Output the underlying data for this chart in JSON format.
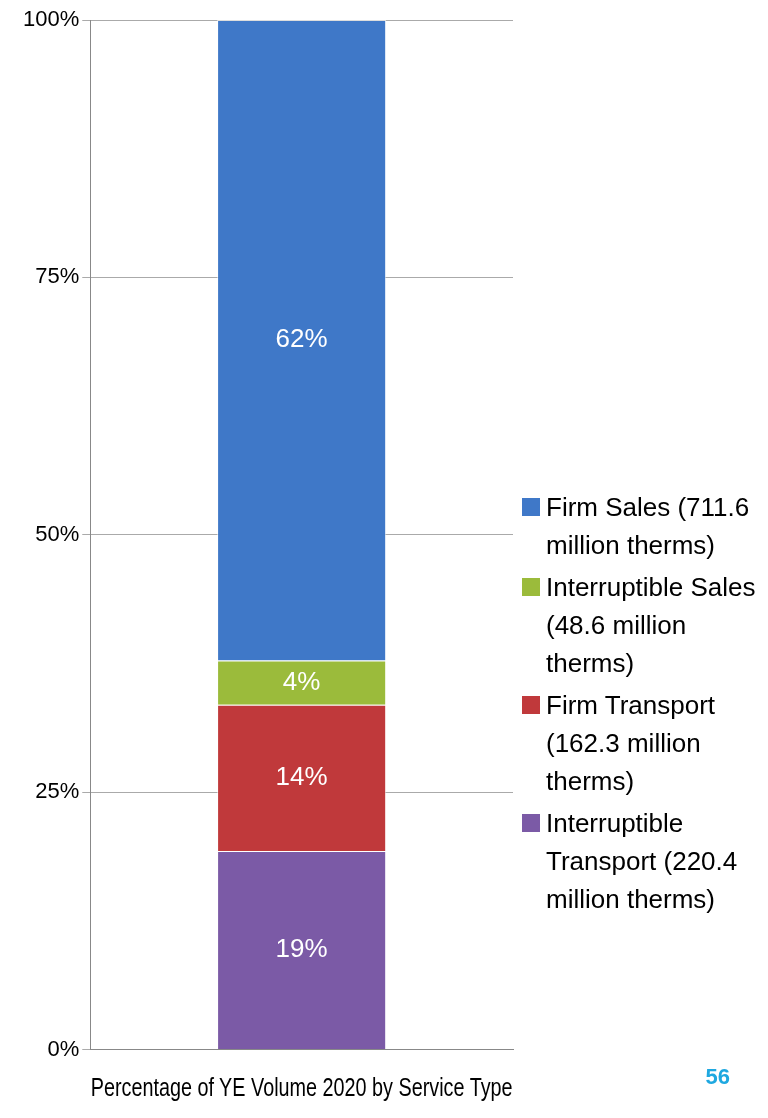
{
  "chart_data": {
    "type": "bar",
    "stacked": true,
    "xlabel": "Percentage of YE Volume 2020 by Service Type",
    "categories": [
      null
    ],
    "series": [
      {
        "name": "Interruptible Transport (220.4 million therms)",
        "color": "#7b5aa6",
        "values": [
          19.3
        ],
        "value_labels": [
          "19%"
        ]
      },
      {
        "name": "Firm Transport (162.3 million therms)",
        "color": "#c0393b",
        "values": [
          14.2
        ],
        "value_labels": [
          "14%"
        ]
      },
      {
        "name": "Interruptible Sales (48.6 million therms)",
        "color": "#9bbb3b",
        "values": [
          4.3
        ],
        "value_labels": [
          "4%"
        ]
      },
      {
        "name": "Firm Sales (711.6 million therms)",
        "color": "#3f78c8",
        "values": [
          62.2
        ],
        "value_labels": [
          "62%"
        ]
      }
    ],
    "ylim": [
      0,
      100
    ],
    "yticks": [
      {
        "value": 0,
        "label": "0%"
      },
      {
        "value": 25,
        "label": "25%"
      },
      {
        "value": 50,
        "label": "50%"
      },
      {
        "value": 75,
        "label": "75%"
      },
      {
        "value": 100,
        "label": "100%"
      }
    ],
    "grid": "y",
    "legend": "right",
    "annotations": [
      "56"
    ]
  }
}
